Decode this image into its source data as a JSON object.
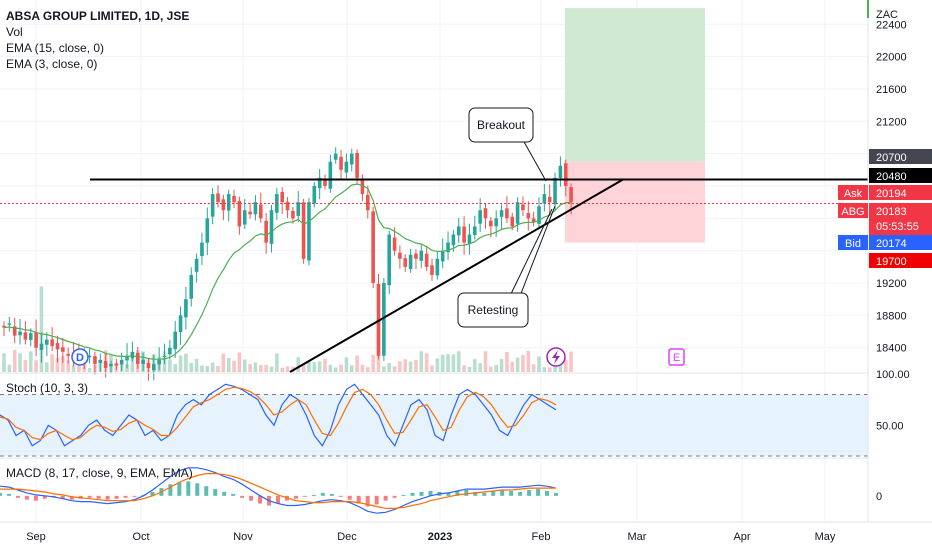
{
  "header": {
    "title": "ABSA GROUP LIMITED, 1D, JSE",
    "indicators": [
      "Vol",
      "EMA (15, close, 0)",
      "EMA (3, close, 0)"
    ]
  },
  "currency_label": "ZAC",
  "callouts": {
    "breakout": "Breakout",
    "retesting": "Retesting"
  },
  "event_markers": {
    "dividend": "D",
    "earnings": "E",
    "split_icon": "lightning-icon"
  },
  "price_tags": [
    {
      "label": "",
      "value": "20700",
      "bg": "#434651"
    },
    {
      "label": "",
      "value": "20480",
      "bg": "#000000"
    },
    {
      "label": "Ask",
      "value": "20194",
      "bg": "#f23645"
    },
    {
      "label": "ABG",
      "value": "20183",
      "sub": "05:53:55",
      "bg": "#f23645"
    },
    {
      "label": "Bid",
      "value": "20174",
      "bg": "#2962ff"
    },
    {
      "label": "",
      "value": "19700",
      "bg": "#f00000"
    }
  ],
  "colors": {
    "up": "#26a69a",
    "down": "#ef5350",
    "ema": "#4caf50",
    "stoch_k": "#2962ff",
    "stoch_d": "#ff6d00",
    "target": "#c8e6c9",
    "stop": "#ffcdd2"
  },
  "chart_data": [
    {
      "type": "candlestick",
      "pane": "price",
      "ylim": [
        18100,
        22700
      ],
      "yticks": [
        18400,
        18800,
        19200,
        19600,
        20000,
        20400,
        20800,
        21200,
        21600,
        22000,
        22400
      ],
      "ytick_labels": [
        "18400",
        "18800",
        "19200",
        "",
        "",
        "",
        "",
        "21200",
        "21600",
        "22000",
        "22400"
      ],
      "xticks": [
        "Sep",
        "Oct",
        "Nov",
        "Dec",
        "2023",
        "Feb",
        "Mar",
        "Apr",
        "May"
      ],
      "closes": [
        18650,
        18700,
        18550,
        18600,
        18500,
        18580,
        18400,
        18450,
        18500,
        18420,
        18380,
        18350,
        18300,
        18320,
        18280,
        18250,
        18300,
        18200,
        18250,
        18150,
        18200,
        18180,
        18250,
        18300,
        18350,
        18200,
        18250,
        18150,
        18200,
        18250,
        18300,
        18400,
        18600,
        18800,
        19000,
        19300,
        19500,
        19700,
        20000,
        20300,
        20200,
        20100,
        20300,
        20200,
        19900,
        20100,
        20050,
        20200,
        20000,
        19700,
        20100,
        20300,
        20200,
        20100,
        20000,
        20200,
        19500,
        20200,
        20400,
        20500,
        20400,
        20700,
        20800,
        20600,
        20700,
        20800,
        20500,
        20300,
        20100,
        19200,
        18300,
        19200,
        19800,
        19600,
        19500,
        19400,
        19550,
        19500,
        19600,
        19400,
        19300,
        19500,
        19600,
        19700,
        19800,
        19900,
        19700,
        19800,
        19900,
        20100,
        20000,
        19900,
        20000,
        20100,
        20000,
        19900,
        20200,
        20100,
        20000,
        19950,
        20150,
        20300,
        20200,
        20500,
        20650,
        20400,
        20200
      ],
      "emas": [
        {
          "name": "EMA (15, close, 0)",
          "period": 15,
          "color": "#4caf50"
        },
        {
          "name": "EMA (3, close, 0)",
          "period": 3,
          "color": "#e91e63"
        }
      ],
      "horizontal_line": 20480,
      "trendline": [
        {
          "x": "Nov 7",
          "y": 18100
        },
        {
          "x": "Feb 14",
          "y": 20480
        }
      ],
      "long_position": {
        "entry": 20183,
        "target": 22600,
        "stop": 19700,
        "target_level": 20700
      },
      "current_price": 20183
    },
    {
      "type": "line",
      "pane": "stochastic",
      "title": "Stoch (10, 3, 3)",
      "ylim": [
        20,
        100
      ],
      "yticks": [
        50,
        100
      ],
      "ytick_labels": [
        "50.00",
        "100.00"
      ],
      "bands": [
        20,
        80
      ],
      "series": [
        {
          "name": "%K",
          "color": "#2962ff",
          "values": [
            60,
            55,
            40,
            45,
            30,
            35,
            50,
            45,
            30,
            35,
            40,
            50,
            55,
            45,
            40,
            50,
            60,
            55,
            40,
            45,
            35,
            40,
            60,
            70,
            75,
            70,
            80,
            85,
            90,
            88,
            85,
            80,
            75,
            60,
            50,
            70,
            80,
            75,
            60,
            40,
            30,
            45,
            70,
            85,
            90,
            80,
            70,
            60,
            40,
            30,
            50,
            70,
            75,
            65,
            40,
            35,
            60,
            80,
            85,
            80,
            70,
            60,
            45,
            40,
            55,
            70,
            80,
            75,
            70,
            65
          ]
        },
        {
          "name": "%D",
          "color": "#ff6d00",
          "values": [
            58,
            56,
            48,
            45,
            38,
            36,
            42,
            45,
            40,
            36,
            38,
            45,
            50,
            48,
            44,
            46,
            52,
            55,
            50,
            46,
            40,
            40,
            48,
            58,
            68,
            72,
            75,
            80,
            85,
            87,
            86,
            83,
            78,
            70,
            60,
            63,
            70,
            75,
            70,
            55,
            42,
            40,
            52,
            68,
            82,
            85,
            80,
            70,
            55,
            42,
            43,
            55,
            68,
            70,
            58,
            45,
            48,
            65,
            78,
            82,
            78,
            70,
            58,
            48,
            50,
            60,
            72,
            76,
            74,
            70
          ]
        }
      ]
    },
    {
      "type": "bar",
      "pane": "macd",
      "title": "MACD (8, 17, close, 9, EMA, EMA)",
      "yticks": [
        0
      ],
      "ytick_labels": [
        "0"
      ],
      "ylim": [
        -2.5,
        3.5
      ],
      "histogram": [
        0.3,
        0.2,
        -0.2,
        -0.4,
        -0.5,
        -0.3,
        -0.2,
        -0.3,
        -0.4,
        -0.3,
        -0.2,
        -0.3,
        -0.4,
        -0.3,
        -0.2,
        -0.1,
        0.1,
        0.4,
        0.8,
        1.2,
        1.4,
        1.5,
        1.3,
        1.0,
        0.7,
        0.4,
        0.2,
        -0.2,
        -0.5,
        -0.8,
        -1.0,
        -0.8,
        -0.5,
        -0.3,
        -0.1,
        0.1,
        0.3,
        0.2,
        -0.1,
        -0.4,
        -0.8,
        -1.1,
        -0.9,
        -0.5,
        -0.2,
        0.1,
        0.3,
        0.4,
        0.5,
        0.4,
        0.3,
        0.5,
        0.6,
        0.4,
        0.3,
        0.5,
        0.6,
        0.5,
        0.4,
        0.6,
        0.7,
        0.5,
        0.3
      ],
      "series": [
        {
          "name": "MACD",
          "color": "#2962ff",
          "values": [
            1.0,
            0.9,
            0.6,
            0.3,
            0.1,
            0.0,
            -0.1,
            -0.3,
            -0.5,
            -0.6,
            -0.6,
            -0.7,
            -0.8,
            -0.7,
            -0.6,
            -0.4,
            0.0,
            0.6,
            1.3,
            2.0,
            2.6,
            2.9,
            2.9,
            2.7,
            2.4,
            2.0,
            1.7,
            1.2,
            0.6,
            0.0,
            -0.5,
            -0.8,
            -1.0,
            -1.0,
            -0.9,
            -0.7,
            -0.5,
            -0.4,
            -0.5,
            -0.7,
            -1.1,
            -1.6,
            -1.8,
            -1.7,
            -1.4,
            -1.0,
            -0.6,
            -0.3,
            0.0,
            0.2,
            0.3,
            0.5,
            0.7,
            0.7,
            0.7,
            0.8,
            0.9,
            0.9,
            0.9,
            1.0,
            1.1,
            1.0,
            0.8
          ]
        },
        {
          "name": "Signal",
          "color": "#ff6d00",
          "values": [
            0.7,
            0.7,
            0.7,
            0.6,
            0.5,
            0.4,
            0.2,
            0.1,
            -0.1,
            -0.2,
            -0.3,
            -0.4,
            -0.5,
            -0.5,
            -0.5,
            -0.5,
            -0.3,
            0.0,
            0.4,
            0.9,
            1.4,
            1.8,
            2.1,
            2.3,
            2.3,
            2.2,
            2.0,
            1.7,
            1.3,
            0.9,
            0.5,
            0.1,
            -0.2,
            -0.5,
            -0.6,
            -0.7,
            -0.7,
            -0.6,
            -0.6,
            -0.6,
            -0.7,
            -0.9,
            -1.1,
            -1.3,
            -1.3,
            -1.2,
            -1.0,
            -0.8,
            -0.5,
            -0.3,
            -0.1,
            0.1,
            0.2,
            0.3,
            0.4,
            0.5,
            0.6,
            0.6,
            0.7,
            0.8,
            0.8,
            0.8,
            0.8
          ]
        }
      ]
    }
  ]
}
